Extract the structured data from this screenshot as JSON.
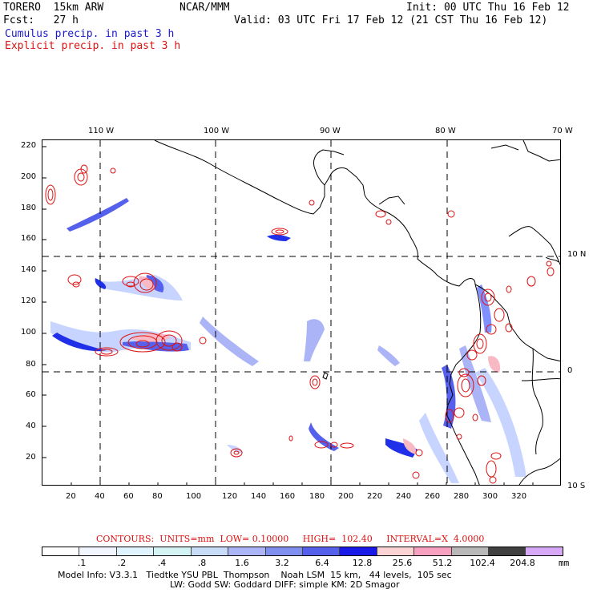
{
  "header": {
    "model": "TORERO  15km ARW",
    "org": "NCAR/MMM",
    "init": "Init: 00 UTC Thu 16 Feb 12",
    "fcst": "Fcst:   27 h",
    "valid": "Valid: 03 UTC Fri 17 Feb 12 (21 CST Thu 16 Feb 12)",
    "cumulus": "Cumulus precip. in past 3 h",
    "explicit": "Explicit precip. in past 3 h"
  },
  "map": {
    "top_lon_labels": [
      "110 W",
      "100 W",
      "90 W",
      "80 W",
      "70 W"
    ],
    "right_lat_labels": [
      "10 N",
      "0",
      "10 S"
    ],
    "y_ticks": [
      "220",
      "200",
      "180",
      "160",
      "140",
      "120",
      "100",
      "80",
      "60",
      "40",
      "20"
    ],
    "x_ticks": [
      "20",
      "40",
      "60",
      "80",
      "100",
      "120",
      "140",
      "160",
      "180",
      "200",
      "220",
      "240",
      "260",
      "280",
      "300",
      "320"
    ],
    "colors": {
      "coast": "#000000",
      "contour": "#dd1111",
      "light_blue": "#c6d4ff",
      "mid_blue": "#8090ff",
      "deep_blue": "#2030e8",
      "pink": "#f8b8c4"
    }
  },
  "contours_line": "CONTOURS:  UNITS=mm  LOW= 0.10000     HIGH=  102.40     INTERVAL=X  4.0000",
  "scale": {
    "colors": [
      "#ffffff",
      "#f2f6ff",
      "#e0f4ff",
      "#d4f4f4",
      "#c8dcf8",
      "#aab4f6",
      "#8090f0",
      "#5560ec",
      "#1a1ae8",
      "#fcd4d4",
      "#f8a0c0",
      "#b8b8b8",
      "#404040",
      "#d8a8f8"
    ],
    "labels": [
      ".1",
      ".2",
      ".4",
      ".8",
      "1.6",
      "3.2",
      "6.4",
      "12.8",
      "25.6",
      "51.2",
      "102.4",
      "204.8"
    ],
    "unit": "mm"
  },
  "footer": {
    "line1": "Model Info: V3.3.1   Tiedtke YSU PBL  Thompson    Noah LSM  15 km,   44 levels,  105 sec",
    "line2": "LW: Godd SW: Goddard DIFF: simple KM: 2D Smagor"
  }
}
